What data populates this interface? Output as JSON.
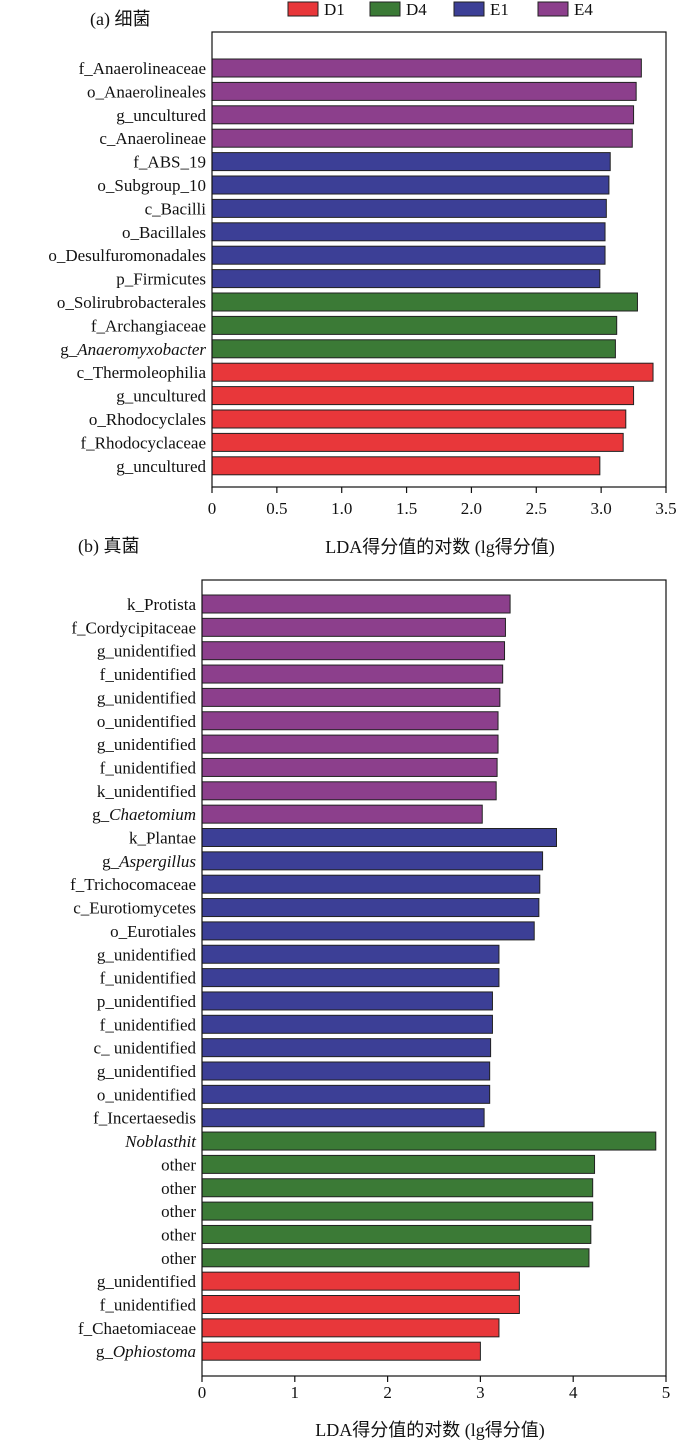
{
  "legend": [
    {
      "name": "D1",
      "color": "#e8373a"
    },
    {
      "name": "D4",
      "color": "#3b7a36"
    },
    {
      "name": "E1",
      "color": "#3c3f96"
    },
    {
      "name": "E4",
      "color": "#8c3f8c"
    }
  ],
  "chart_data": [
    {
      "type": "bar",
      "orientation": "horizontal",
      "panel_label": "(a) 细菌",
      "xlabel": "LDA得分值的对数 (lg得分值)",
      "xlim": [
        0,
        3.5
      ],
      "xticks": [
        "0",
        "0.5",
        "1.0",
        "1.5",
        "2.0",
        "2.5",
        "3.0",
        "3.5"
      ],
      "xtick_values": [
        0,
        0.5,
        1.0,
        1.5,
        2.0,
        2.5,
        3.0,
        3.5
      ],
      "grid": false,
      "legend_position": "top",
      "bars": [
        {
          "prefix": "f_",
          "name": "Anaerolineaceae",
          "italic": false,
          "group": "E4",
          "value": 3.31
        },
        {
          "prefix": "o_",
          "name": "Anaerolineales",
          "italic": false,
          "group": "E4",
          "value": 3.27
        },
        {
          "prefix": "g_",
          "name": "uncultured",
          "italic": false,
          "group": "E4",
          "value": 3.25
        },
        {
          "prefix": "c_",
          "name": "Anaerolineae",
          "italic": false,
          "group": "E4",
          "value": 3.24
        },
        {
          "prefix": "f_",
          "name": "ABS_19",
          "italic": false,
          "group": "E1",
          "value": 3.07
        },
        {
          "prefix": "o_",
          "name": "Subgroup_10",
          "italic": false,
          "group": "E1",
          "value": 3.06
        },
        {
          "prefix": "c_",
          "name": "Bacilli",
          "italic": false,
          "group": "E1",
          "value": 3.04
        },
        {
          "prefix": "o_",
          "name": "Bacillales",
          "italic": false,
          "group": "E1",
          "value": 3.03
        },
        {
          "prefix": "o_",
          "name": "Desulfuromonadales",
          "italic": false,
          "group": "E1",
          "value": 3.03
        },
        {
          "prefix": "p_",
          "name": "Firmicutes",
          "italic": false,
          "group": "E1",
          "value": 2.99
        },
        {
          "prefix": "o_",
          "name": "Solirubrobacterales",
          "italic": false,
          "group": "D4",
          "value": 3.28
        },
        {
          "prefix": "f_",
          "name": "Archangiaceae",
          "italic": false,
          "group": "D4",
          "value": 3.12
        },
        {
          "prefix": "g_",
          "name": "Anaeromyxobacter",
          "italic": true,
          "group": "D4",
          "value": 3.11
        },
        {
          "prefix": "c_",
          "name": "Thermoleophilia",
          "italic": false,
          "group": "D1",
          "value": 3.4
        },
        {
          "prefix": "g_",
          "name": "uncultured",
          "italic": false,
          "group": "D1",
          "value": 3.25
        },
        {
          "prefix": "o_",
          "name": "Rhodocyclales",
          "italic": false,
          "group": "D1",
          "value": 3.19
        },
        {
          "prefix": "f_",
          "name": "Rhodocyclaceae",
          "italic": false,
          "group": "D1",
          "value": 3.17
        },
        {
          "prefix": "g_",
          "name": "uncultured",
          "italic": false,
          "group": "D1",
          "value": 2.99
        }
      ]
    },
    {
      "type": "bar",
      "orientation": "horizontal",
      "panel_label": "(b) 真菌",
      "xlabel": "LDA得分值的对数 (lg得分值)",
      "xlim": [
        0,
        5
      ],
      "xticks": [
        "0",
        "1",
        "2",
        "3",
        "4",
        "5"
      ],
      "xtick_values": [
        0,
        1,
        2,
        3,
        4,
        5
      ],
      "grid": false,
      "bars": [
        {
          "prefix": "k_",
          "name": "Protista",
          "italic": false,
          "group": "E4",
          "value": 3.32
        },
        {
          "prefix": "f_",
          "name": "Cordycipitaceae",
          "italic": false,
          "group": "E4",
          "value": 3.27
        },
        {
          "prefix": "g_",
          "name": "unidentified",
          "italic": false,
          "group": "E4",
          "value": 3.26
        },
        {
          "prefix": "f_",
          "name": "unidentified",
          "italic": false,
          "group": "E4",
          "value": 3.24
        },
        {
          "prefix": "g_",
          "name": "unidentified",
          "italic": false,
          "group": "E4",
          "value": 3.21
        },
        {
          "prefix": "o_",
          "name": "unidentified",
          "italic": false,
          "group": "E4",
          "value": 3.19
        },
        {
          "prefix": "g_",
          "name": "unidentified",
          "italic": false,
          "group": "E4",
          "value": 3.19
        },
        {
          "prefix": "f_",
          "name": "unidentified",
          "italic": false,
          "group": "E4",
          "value": 3.18
        },
        {
          "prefix": "k_",
          "name": "unidentified",
          "italic": false,
          "group": "E4",
          "value": 3.17
        },
        {
          "prefix": "g_",
          "name": "Chaetomium",
          "italic": true,
          "group": "E4",
          "value": 3.02
        },
        {
          "prefix": "k_",
          "name": "Plantae",
          "italic": false,
          "group": "E1",
          "value": 3.82
        },
        {
          "prefix": "g_",
          "name": "Aspergillus",
          "italic": true,
          "group": "E1",
          "value": 3.67
        },
        {
          "prefix": "f_",
          "name": "Trichocomaceae",
          "italic": false,
          "group": "E1",
          "value": 3.64
        },
        {
          "prefix": "c_",
          "name": "Eurotiomycetes",
          "italic": false,
          "group": "E1",
          "value": 3.63
        },
        {
          "prefix": "o_",
          "name": "Eurotiales",
          "italic": false,
          "group": "E1",
          "value": 3.58
        },
        {
          "prefix": "g_",
          "name": "unidentified",
          "italic": false,
          "group": "E1",
          "value": 3.2
        },
        {
          "prefix": "f_",
          "name": "unidentified",
          "italic": false,
          "group": "E1",
          "value": 3.2
        },
        {
          "prefix": "p_",
          "name": "unidentified",
          "italic": false,
          "group": "E1",
          "value": 3.13
        },
        {
          "prefix": "f_",
          "name": "unidentified",
          "italic": false,
          "group": "E1",
          "value": 3.13
        },
        {
          "prefix": "c_ ",
          "name": "unidentified",
          "italic": false,
          "group": "E1",
          "value": 3.11
        },
        {
          "prefix": "g_",
          "name": "unidentified",
          "italic": false,
          "group": "E1",
          "value": 3.1
        },
        {
          "prefix": "o_",
          "name": "unidentified",
          "italic": false,
          "group": "E1",
          "value": 3.1
        },
        {
          "prefix": "f_",
          "name": "Incertaesedis",
          "italic": false,
          "group": "E1",
          "value": 3.04
        },
        {
          "prefix": "",
          "name": "Noblasthit",
          "italic": true,
          "group": "D4",
          "value": 4.89
        },
        {
          "prefix": "",
          "name": "other",
          "italic": false,
          "group": "D4",
          "value": 4.23
        },
        {
          "prefix": "",
          "name": "other",
          "italic": false,
          "group": "D4",
          "value": 4.21
        },
        {
          "prefix": "",
          "name": "other",
          "italic": false,
          "group": "D4",
          "value": 4.21
        },
        {
          "prefix": "",
          "name": "other",
          "italic": false,
          "group": "D4",
          "value": 4.19
        },
        {
          "prefix": "",
          "name": "other",
          "italic": false,
          "group": "D4",
          "value": 4.17
        },
        {
          "prefix": "g_",
          "name": "unidentified",
          "italic": false,
          "group": "D1",
          "value": 3.42
        },
        {
          "prefix": "f_",
          "name": "unidentified",
          "italic": false,
          "group": "D1",
          "value": 3.42
        },
        {
          "prefix": "f_",
          "name": "Chaetomiaceae",
          "italic": false,
          "group": "D1",
          "value": 3.2
        },
        {
          "prefix": "g_",
          "name": "Ophiostoma",
          "italic": true,
          "group": "D1",
          "value": 3.0
        }
      ]
    }
  ]
}
